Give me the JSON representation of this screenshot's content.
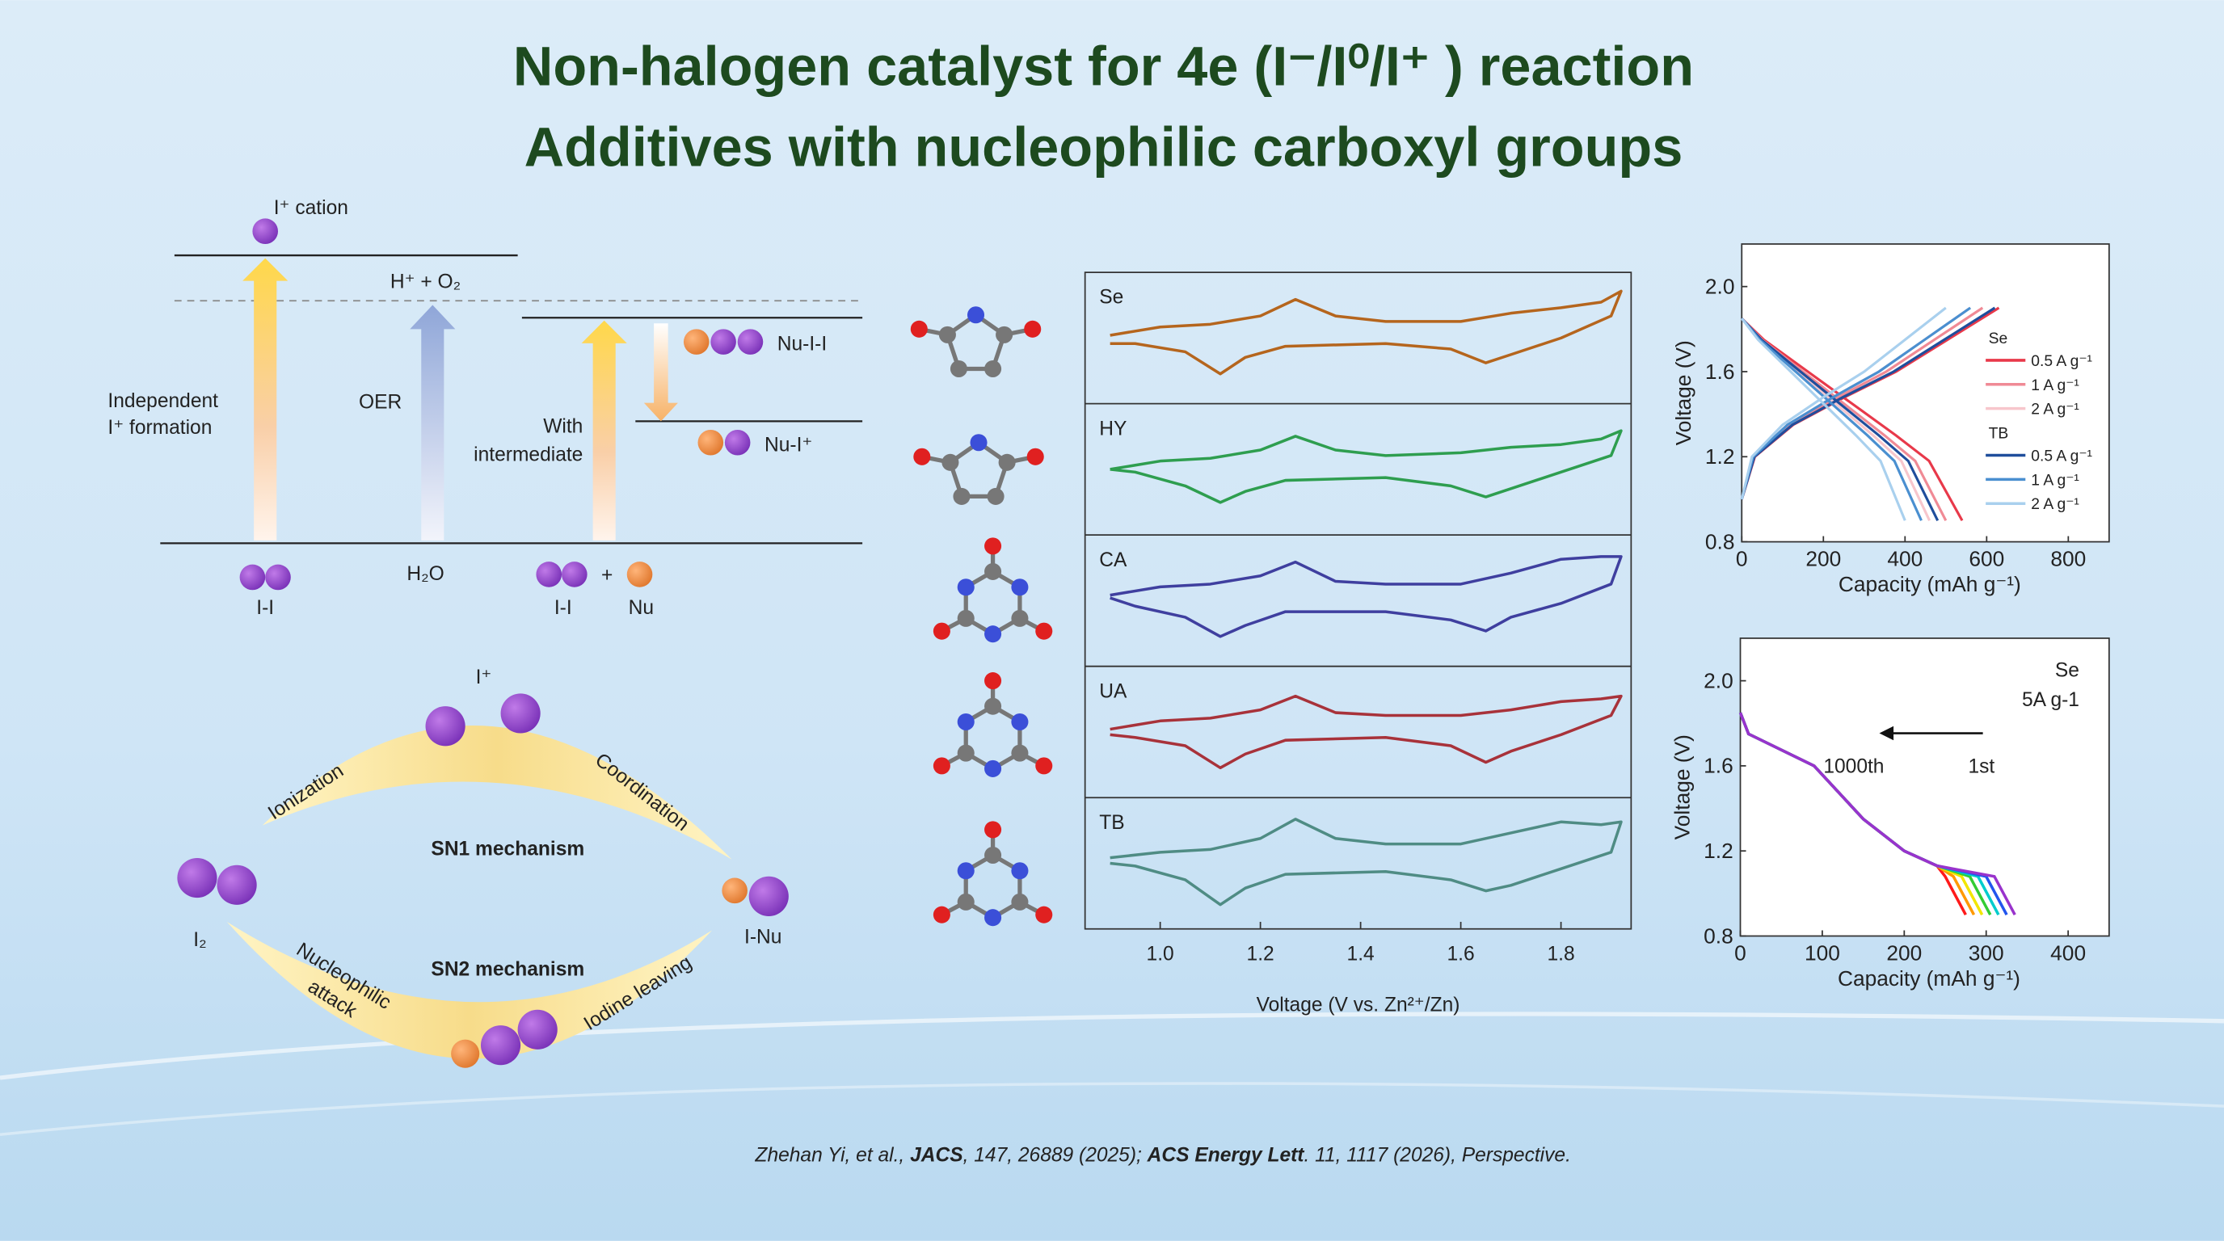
{
  "title": [
    "Non-halogen catalyst for 4e (I⁻/I⁰/I⁺ ) reaction",
    "Additives with nucleophilic carboxyl groups"
  ],
  "energy_diagram": {
    "i_cation": "I⁺ cation",
    "h_o2": "H⁺ + O₂",
    "independent": [
      "Independent",
      "I⁺ formation"
    ],
    "oer": "OER",
    "with_intermediate": [
      "With",
      "intermediate"
    ],
    "nu_i_i": "Nu-I-I",
    "nu_i": "Nu-I⁺",
    "ii_1": "I-I",
    "h2o": "H₂O",
    "ii_2": "I-I",
    "plus": "+",
    "nu": "Nu"
  },
  "mechanism": {
    "i_plus": "I⁺",
    "ionization": "Ionization",
    "coordination": "Coordination",
    "sn1": "SN1 mechanism",
    "sn2": "SN2 mechanism",
    "i2": "I₂",
    "i_nu": "I-Nu",
    "nucleophilic": [
      "Nucleophilic",
      "attack"
    ],
    "iodine_leaving": "Iodine leaving"
  },
  "chart_data": [
    {
      "type": "line",
      "xlabel": "Voltage (V vs. Zn²⁺/Zn)",
      "xlim": [
        0.85,
        1.94
      ],
      "xticks": [
        {
          "value": 1,
          "label": "1.0"
        },
        1.2,
        1.4,
        1.6,
        1.8
      ],
      "ylim": [
        -1,
        1
      ],
      "panels": [
        {
          "name": "Se",
          "color": "#b5651d",
          "x": [
            0.9,
            1.0,
            1.1,
            1.2,
            1.27,
            1.35,
            1.45,
            1.6,
            1.7,
            1.8,
            1.88,
            1.92,
            1.9,
            1.8,
            1.7,
            1.65,
            1.58,
            1.45,
            1.25,
            1.17,
            1.12,
            1.05,
            0.95,
            0.9
          ],
          "values": [
            0.05,
            0.2,
            0.25,
            0.4,
            0.7,
            0.4,
            0.3,
            0.3,
            0.45,
            0.55,
            0.65,
            0.85,
            0.4,
            0.0,
            -0.3,
            -0.45,
            -0.2,
            -0.1,
            -0.15,
            -0.35,
            -0.65,
            -0.25,
            -0.1,
            -0.1
          ]
        },
        {
          "name": "HY",
          "color": "#2e9e4f",
          "x": [
            0.9,
            1.0,
            1.1,
            1.2,
            1.27,
            1.35,
            1.45,
            1.6,
            1.7,
            1.8,
            1.88,
            1.92,
            1.9,
            1.8,
            1.7,
            1.65,
            1.58,
            1.45,
            1.25,
            1.17,
            1.12,
            1.05,
            0.95,
            0.9
          ],
          "values": [
            0.0,
            0.15,
            0.2,
            0.35,
            0.6,
            0.35,
            0.25,
            0.3,
            0.4,
            0.45,
            0.55,
            0.7,
            0.25,
            -0.05,
            -0.35,
            -0.5,
            -0.3,
            -0.15,
            -0.2,
            -0.4,
            -0.6,
            -0.3,
            -0.05,
            0.0
          ]
        },
        {
          "name": "CA",
          "color": "#3f3f9f",
          "x": [
            0.9,
            1.0,
            1.1,
            1.2,
            1.27,
            1.35,
            1.45,
            1.6,
            1.7,
            1.8,
            1.88,
            1.92,
            1.9,
            1.8,
            1.7,
            1.65,
            1.58,
            1.45,
            1.25,
            1.17,
            1.12,
            1.05,
            0.95,
            0.9
          ],
          "values": [
            0.1,
            0.25,
            0.3,
            0.45,
            0.7,
            0.35,
            0.3,
            0.3,
            0.5,
            0.75,
            0.8,
            0.8,
            0.3,
            -0.05,
            -0.3,
            -0.55,
            -0.35,
            -0.2,
            -0.2,
            -0.45,
            -0.65,
            -0.3,
            -0.1,
            0.05
          ]
        },
        {
          "name": "UA",
          "color": "#a8323a",
          "x": [
            0.9,
            1.0,
            1.1,
            1.2,
            1.27,
            1.35,
            1.45,
            1.6,
            1.7,
            1.8,
            1.88,
            1.92,
            1.9,
            1.8,
            1.7,
            1.65,
            1.58,
            1.45,
            1.25,
            1.17,
            1.12,
            1.05,
            0.95,
            0.9
          ],
          "values": [
            0.05,
            0.2,
            0.25,
            0.4,
            0.65,
            0.35,
            0.3,
            0.3,
            0.4,
            0.55,
            0.6,
            0.65,
            0.3,
            -0.05,
            -0.35,
            -0.55,
            -0.25,
            -0.1,
            -0.15,
            -0.4,
            -0.65,
            -0.25,
            -0.1,
            -0.05
          ]
        },
        {
          "name": "TB",
          "color": "#4f8c84",
          "x": [
            0.9,
            1.0,
            1.1,
            1.2,
            1.27,
            1.35,
            1.45,
            1.6,
            1.7,
            1.8,
            1.88,
            1.92,
            1.9,
            1.8,
            1.7,
            1.65,
            1.58,
            1.45,
            1.25,
            1.17,
            1.12,
            1.05,
            0.95,
            0.9
          ],
          "values": [
            0.1,
            0.2,
            0.25,
            0.45,
            0.8,
            0.45,
            0.35,
            0.35,
            0.55,
            0.75,
            0.7,
            0.75,
            0.2,
            -0.1,
            -0.4,
            -0.5,
            -0.3,
            -0.15,
            -0.2,
            -0.45,
            -0.75,
            -0.3,
            -0.05,
            0.0
          ]
        }
      ]
    },
    {
      "type": "line",
      "xlabel": "Capacity (mAh g⁻¹)",
      "ylabel": "Voltage (V)",
      "xlim": [
        0,
        900
      ],
      "xticks": [
        0,
        200,
        400,
        600,
        800
      ],
      "ylim": [
        0.8,
        2.2
      ],
      "yticks": [
        0.8,
        1.2,
        1.6,
        {
          "value": 2,
          "label": "2.0"
        }
      ],
      "groups": [
        {
          "name": "Se",
          "series": [
            {
              "name": "0.5 A g⁻¹",
              "color": "#e8394a",
              "discharge": {
                "x": [
                  0,
                  54,
                  162,
                  270,
                  378,
                  459,
                  540
                ],
                "values": [
                  1.85,
                  1.75,
                  1.6,
                  1.45,
                  1.3,
                  1.18,
                  0.9
                ]
              },
              "charge": {
                "x": [
                  0,
                  32,
                  126,
                  252,
                  378,
                  504,
                  630
                ],
                "values": [
                  1.0,
                  1.2,
                  1.35,
                  1.48,
                  1.6,
                  1.75,
                  1.9
                ]
              }
            },
            {
              "name": "1 A g⁻¹",
              "color": "#f08a95",
              "discharge": {
                "x": [
                  0,
                  50,
                  150,
                  250,
                  350,
                  425,
                  500
                ],
                "values": [
                  1.85,
                  1.75,
                  1.6,
                  1.45,
                  1.3,
                  1.18,
                  0.9
                ]
              },
              "charge": {
                "x": [
                  0,
                  30,
                  118,
                  236,
                  354,
                  472,
                  590
                ],
                "values": [
                  1.0,
                  1.2,
                  1.35,
                  1.48,
                  1.6,
                  1.75,
                  1.9
                ]
              }
            },
            {
              "name": "2 A g⁻¹",
              "color": "#f7c6cc",
              "discharge": {
                "x": [
                  0,
                  46,
                  138,
                  230,
                  322,
                  391,
                  460
                ],
                "values": [
                  1.85,
                  1.75,
                  1.6,
                  1.45,
                  1.3,
                  1.18,
                  0.9
                ]
              },
              "charge": {
                "x": [
                  0,
                  28,
                  112,
                  224,
                  336,
                  448,
                  560
                ],
                "values": [
                  1.0,
                  1.2,
                  1.35,
                  1.48,
                  1.6,
                  1.75,
                  1.9
                ]
              }
            }
          ]
        },
        {
          "name": "TB",
          "series": [
            {
              "name": "0.5 A g⁻¹",
              "color": "#1f4e9c",
              "discharge": {
                "x": [
                  0,
                  48,
                  144,
                  240,
                  336,
                  408,
                  480
                ],
                "values": [
                  1.85,
                  1.75,
                  1.6,
                  1.45,
                  1.3,
                  1.18,
                  0.9
                ]
              },
              "charge": {
                "x": [
                  0,
                  31,
                  124,
                  248,
                  372,
                  496,
                  620
                ],
                "values": [
                  1.0,
                  1.2,
                  1.35,
                  1.48,
                  1.6,
                  1.75,
                  1.9
                ]
              }
            },
            {
              "name": "1 A g⁻¹",
              "color": "#4a8fd0",
              "discharge": {
                "x": [
                  0,
                  44,
                  132,
                  220,
                  308,
                  374,
                  440
                ],
                "values": [
                  1.85,
                  1.75,
                  1.6,
                  1.45,
                  1.3,
                  1.18,
                  0.9
                ]
              },
              "charge": {
                "x": [
                  0,
                  28,
                  112,
                  224,
                  336,
                  448,
                  560
                ],
                "values": [
                  1.0,
                  1.2,
                  1.35,
                  1.48,
                  1.6,
                  1.75,
                  1.9
                ]
              }
            },
            {
              "name": "2 A g⁻¹",
              "color": "#a9d0ee",
              "discharge": {
                "x": [
                  0,
                  40,
                  120,
                  200,
                  280,
                  340,
                  400
                ],
                "values": [
                  1.85,
                  1.75,
                  1.6,
                  1.45,
                  1.3,
                  1.18,
                  0.9
                ]
              },
              "charge": {
                "x": [
                  0,
                  25,
                  100,
                  200,
                  300,
                  400,
                  500
                ],
                "values": [
                  1.0,
                  1.2,
                  1.35,
                  1.48,
                  1.6,
                  1.75,
                  1.9
                ]
              }
            }
          ]
        }
      ]
    },
    {
      "type": "line",
      "xlabel": "Capacity (mAh g⁻¹)",
      "ylabel": "Voltage (V)",
      "xlim": [
        0,
        450
      ],
      "xticks": [
        0,
        100,
        200,
        300,
        400
      ],
      "ylim": [
        0.8,
        2.2
      ],
      "yticks": [
        0.8,
        1.2,
        1.6,
        {
          "value": 2,
          "label": "2.0"
        }
      ],
      "annotations": [
        "Se",
        "5A g-1",
        "1000th",
        "1st"
      ],
      "series": [
        {
          "color": "#ff1a1a",
          "x": [
            0,
            10,
            90,
            150,
            200,
            240,
            250,
            275
          ],
          "values": [
            1.85,
            1.75,
            1.6,
            1.35,
            1.2,
            1.13,
            1.08,
            0.9
          ]
        },
        {
          "color": "#ff9900",
          "x": [
            0,
            10,
            90,
            150,
            200,
            240,
            260,
            285
          ],
          "values": [
            1.85,
            1.75,
            1.6,
            1.35,
            1.2,
            1.13,
            1.08,
            0.9
          ]
        },
        {
          "color": "#f2e600",
          "x": [
            0,
            10,
            90,
            150,
            200,
            240,
            270,
            295
          ],
          "values": [
            1.85,
            1.75,
            1.6,
            1.35,
            1.2,
            1.13,
            1.08,
            0.9
          ]
        },
        {
          "color": "#33cc33",
          "x": [
            0,
            10,
            90,
            150,
            200,
            240,
            280,
            305
          ],
          "values": [
            1.85,
            1.75,
            1.6,
            1.35,
            1.2,
            1.13,
            1.08,
            0.9
          ]
        },
        {
          "color": "#00cccc",
          "x": [
            0,
            10,
            90,
            150,
            200,
            240,
            290,
            315
          ],
          "values": [
            1.85,
            1.75,
            1.6,
            1.35,
            1.2,
            1.13,
            1.08,
            0.9
          ]
        },
        {
          "color": "#2255ee",
          "x": [
            0,
            10,
            90,
            150,
            200,
            240,
            300,
            325
          ],
          "values": [
            1.85,
            1.75,
            1.6,
            1.35,
            1.2,
            1.13,
            1.08,
            0.9
          ]
        },
        {
          "color": "#9933cc",
          "x": [
            0,
            10,
            90,
            150,
            200,
            240,
            310,
            335
          ],
          "values": [
            1.85,
            1.75,
            1.6,
            1.35,
            1.2,
            1.13,
            1.08,
            0.9
          ]
        }
      ]
    }
  ],
  "citation": [
    "Zhehan Yi, et al., ",
    "JACS",
    ", 147, 26889 (2025); ",
    "ACS Energy Lett",
    ". 11, 1117 (2026), Perspective."
  ]
}
